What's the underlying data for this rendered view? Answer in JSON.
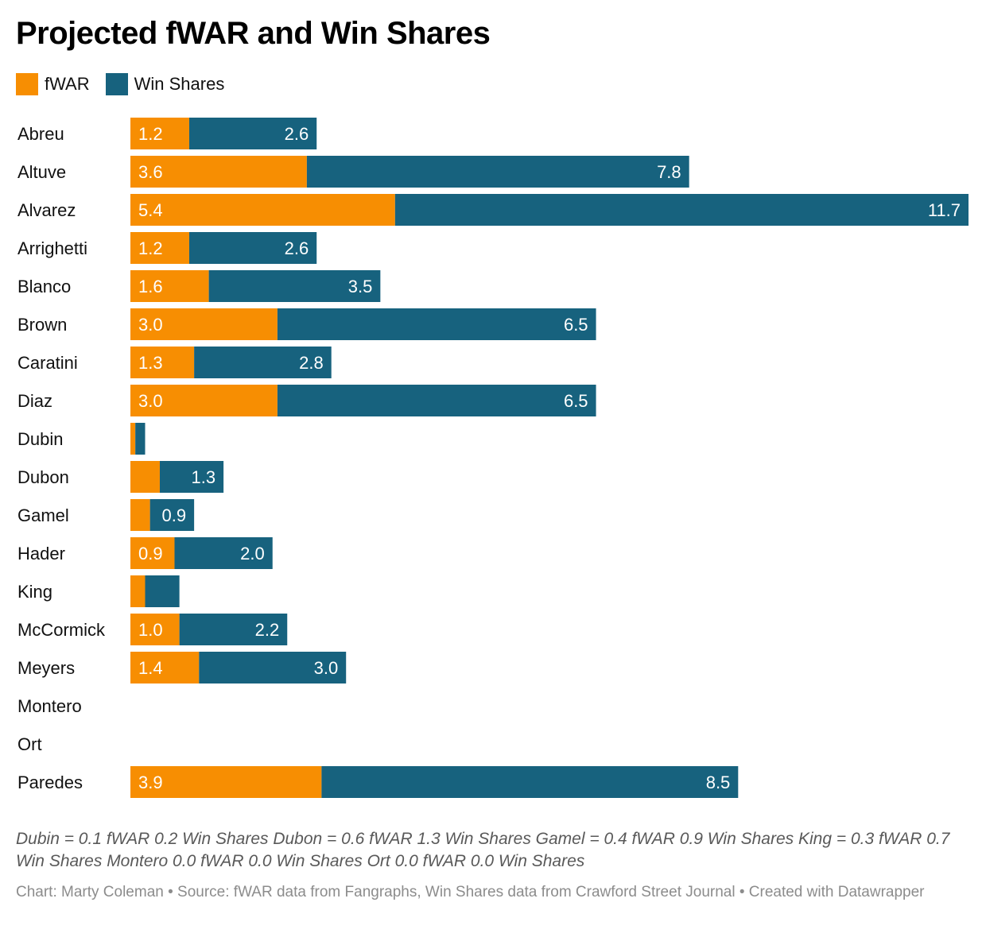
{
  "title": "Projected fWAR and Win Shares",
  "legend": [
    {
      "label": "fWAR",
      "color": "#f78e02"
    },
    {
      "label": "Win Shares",
      "color": "#17627e"
    }
  ],
  "chart_data": {
    "type": "bar",
    "orientation": "horizontal",
    "stacked": true,
    "title": "Projected fWAR and Win Shares",
    "categories": [
      "Abreu",
      "Altuve",
      "Alvarez",
      "Arrighetti",
      "Blanco",
      "Brown",
      "Caratini",
      "Diaz",
      "Dubin",
      "Dubon",
      "Gamel",
      "Hader",
      "King",
      "McCormick",
      "Meyers",
      "Montero",
      "Ort",
      "Paredes"
    ],
    "series": [
      {
        "name": "fWAR",
        "color": "#f78e02",
        "values": [
          1.2,
          3.6,
          5.4,
          1.2,
          1.6,
          3.0,
          1.3,
          3.0,
          0.1,
          0.6,
          0.4,
          0.9,
          0.3,
          1.0,
          1.4,
          0.0,
          0.0,
          3.9
        ],
        "labels": [
          "1.2",
          "3.6",
          "5.4",
          "1.2",
          "1.6",
          "3.0",
          "1.3",
          "3.0",
          "",
          "",
          "",
          "0.9",
          "",
          "1.0",
          "1.4",
          "",
          "",
          "3.9"
        ]
      },
      {
        "name": "Win Shares",
        "color": "#17627e",
        "values": [
          2.6,
          7.8,
          11.7,
          2.6,
          3.5,
          6.5,
          2.8,
          6.5,
          0.2,
          1.3,
          0.9,
          2.0,
          0.7,
          2.2,
          3.0,
          0.0,
          0.0,
          8.5
        ],
        "labels": [
          "2.6",
          "7.8",
          "11.7",
          "2.6",
          "3.5",
          "6.5",
          "2.8",
          "6.5",
          "",
          "1.3",
          "0.9",
          "2.0",
          "",
          "2.2",
          "3.0",
          "",
          "",
          "8.5"
        ]
      }
    ],
    "xlim": [
      0,
      17.1
    ],
    "grid": false,
    "legend_position": "top-left"
  },
  "note": "Dubin = 0.1 fWAR 0.2 Win Shares Dubon = 0.6 fWAR 1.3 Win Shares Gamel = 0.4 fWAR 0.9 Win Shares King = 0.3 fWAR 0.7 Win Shares Montero 0.0 fWAR 0.0 Win Shares Ort 0.0 fWAR 0.0 Win Shares",
  "source": "Chart: Marty Coleman • Source: fWAR data from Fangraphs, Win Shares data from Crawford Street Journal • Created with Datawrapper"
}
